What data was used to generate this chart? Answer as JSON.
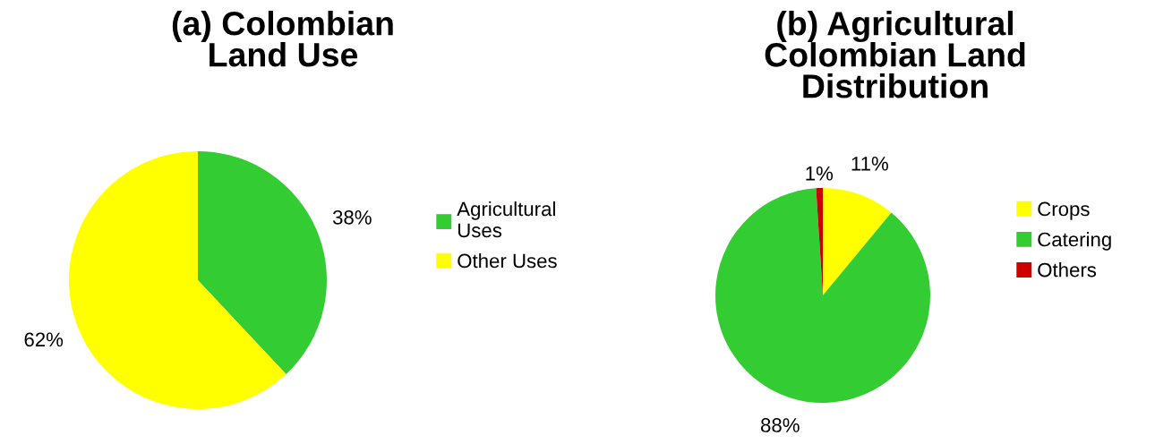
{
  "chart_data": [
    {
      "type": "pie",
      "title": "(a) Colombian Land Use",
      "categories": [
        "Agricultural Uses",
        "Other Uses"
      ],
      "values": [
        38,
        62
      ],
      "colors": [
        "#33cc33",
        "#ffff00"
      ],
      "value_labels": [
        "38%",
        "62%"
      ],
      "legend": "right"
    },
    {
      "type": "pie",
      "title": "(b) Agricultural Colombian Land Distribution",
      "categories": [
        "Crops",
        "Catering",
        "Others"
      ],
      "values": [
        11,
        88,
        1
      ],
      "colors": [
        "#ffff00",
        "#33cc33",
        "#cc0000"
      ],
      "value_labels": [
        "11%",
        "88%",
        "1%"
      ],
      "legend": "right"
    }
  ]
}
